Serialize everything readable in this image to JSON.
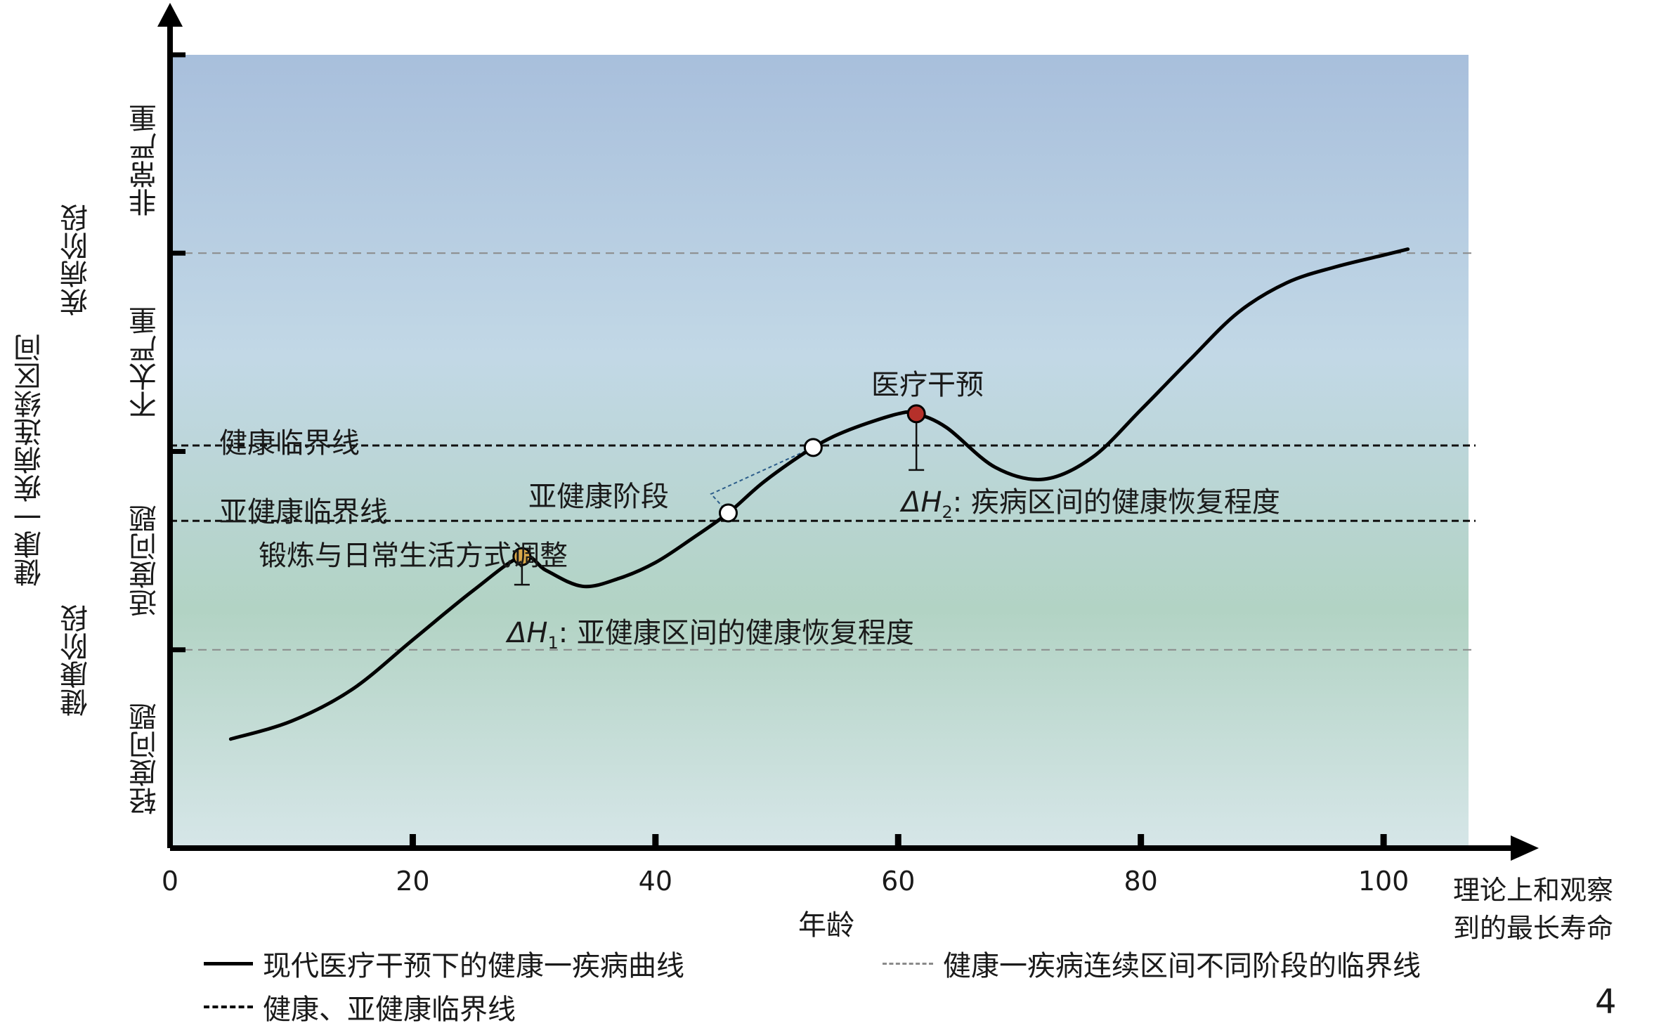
{
  "chart_data": {
    "type": "line",
    "xlim": [
      0,
      107
    ],
    "ylim": [
      0,
      4
    ],
    "x_ticks": [
      0,
      20,
      40,
      60,
      80,
      100
    ],
    "x_tick_labels": [
      "0",
      "20",
      "40",
      "60",
      "80",
      "100"
    ],
    "xlabel": "年龄",
    "x_end_label": [
      "理论上和观察",
      "到的最长寿命"
    ],
    "ylabel": "健康一疾病连续区间",
    "y_stage_labels": [
      {
        "label": "轻度问题",
        "from": 0,
        "to": 1
      },
      {
        "label": "适度问题",
        "from": 1,
        "to": 2
      },
      {
        "label": "不太严重",
        "from": 2,
        "to": 3
      },
      {
        "label": "非常严重",
        "from": 3,
        "to": 4
      }
    ],
    "y_phase_labels": [
      {
        "label": "健康阶段",
        "from": 0,
        "to": 2
      },
      {
        "label": "疾病阶段",
        "from": 2,
        "to": 4
      }
    ],
    "stage_boundaries": [
      1,
      3
    ],
    "thresholds": [
      {
        "name": "健康临界线",
        "y": 2.03
      },
      {
        "name": "亚健康临界线",
        "y": 1.65
      }
    ],
    "series": [
      {
        "name": "现代医疗干预下的健康一疾病曲线",
        "color": "#000000",
        "x": [
          5,
          10,
          15,
          20,
          25,
          29,
          31,
          34,
          37,
          40,
          43,
          46,
          49,
          53,
          56,
          60,
          61.5,
          64,
          68,
          72,
          76,
          80,
          84,
          88,
          92,
          96,
          100,
          102
        ],
        "y": [
          0.55,
          0.64,
          0.8,
          1.05,
          1.3,
          1.47,
          1.4,
          1.32,
          1.36,
          1.44,
          1.56,
          1.69,
          1.85,
          2.02,
          2.11,
          2.19,
          2.19,
          2.12,
          1.92,
          1.86,
          1.97,
          2.21,
          2.46,
          2.7,
          2.85,
          2.93,
          2.99,
          3.02
        ]
      }
    ],
    "markers": [
      {
        "name": "锻炼与日常生活方式调整",
        "x": 29,
        "y": 1.47,
        "color": "#d9a84a"
      },
      {
        "name": "亚健康临界点",
        "x": 46,
        "y": 1.69,
        "color": "#ffffff"
      },
      {
        "name": "健康临界点",
        "x": 53,
        "y": 2.02,
        "color": "#ffffff"
      },
      {
        "name": "医疗干预",
        "x": 61.5,
        "y": 2.19,
        "color": "#b5302a"
      }
    ],
    "annotations": {
      "subhealth_stage": "亚健康阶段",
      "lifestyle": "锻炼与日常生活方式调整",
      "intervention": "医疗干预",
      "delta_h1_symbol": "ΔH",
      "delta_h1_sub": "1",
      "delta_h1_text": ": 亚健康区间的健康恢复程度",
      "delta_h2_symbol": "ΔH",
      "delta_h2_sub": "2",
      "delta_h2_text": ":  疾病区间的健康恢复程度"
    },
    "legend": [
      {
        "label": "现代医疗干预下的健康一疾病曲线",
        "style": "solid-black"
      },
      {
        "label": "健康、亚健康临界线",
        "style": "dashed-black"
      },
      {
        "label": "健康一疾病连续区间不同阶段的临界线",
        "style": "dashed-gray"
      }
    ],
    "background_gradient": [
      "#a8bfdc",
      "#c2d8e6",
      "#b2d3c4",
      "#d6e6e8"
    ],
    "figure_number": "4"
  }
}
